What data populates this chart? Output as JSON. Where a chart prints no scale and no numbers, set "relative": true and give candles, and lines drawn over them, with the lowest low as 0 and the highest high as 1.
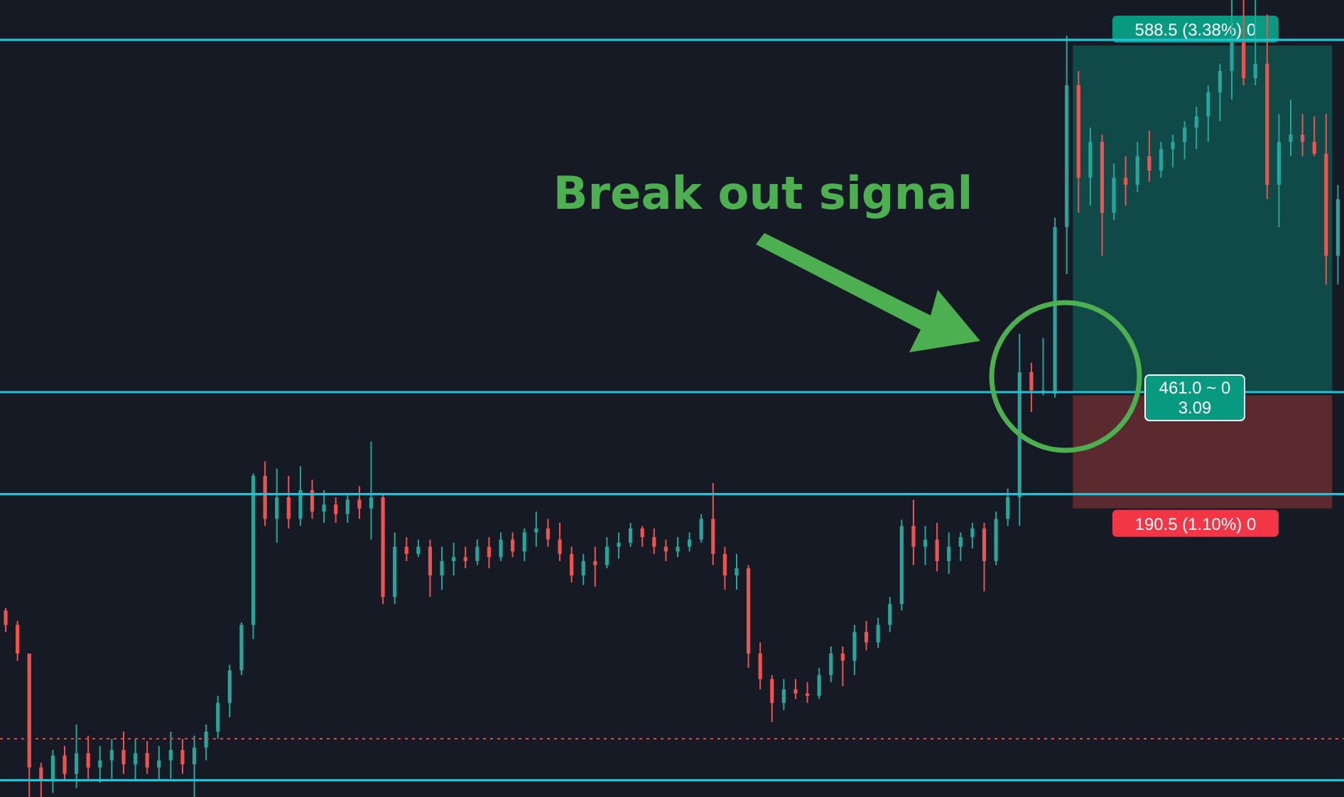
{
  "chart_data": {
    "type": "candlestick",
    "relative": true,
    "tick_labels": false,
    "grid": false,
    "legend": false,
    "categories": [
      null,
      null,
      null,
      null,
      null,
      null,
      null,
      null,
      null,
      null,
      null,
      null,
      null,
      null,
      null,
      null,
      null,
      null,
      null,
      null,
      null,
      null,
      null,
      null,
      null,
      null,
      null,
      null,
      null,
      null,
      null,
      null,
      null,
      null,
      null,
      null,
      null,
      null,
      null,
      null,
      null,
      null,
      null,
      null,
      null,
      null,
      null,
      null,
      null,
      null,
      null,
      null,
      null,
      null,
      null,
      null,
      null,
      null,
      null,
      null,
      null,
      null,
      null,
      null,
      null,
      null,
      null,
      null,
      null,
      null,
      null,
      null,
      null,
      null,
      null,
      null,
      null,
      null,
      null,
      null,
      null,
      null,
      null,
      null,
      null,
      null,
      null,
      null,
      null,
      null,
      null,
      null,
      null,
      null,
      null,
      null,
      null,
      null,
      null,
      null,
      null,
      null,
      null,
      null,
      null,
      null,
      null,
      null,
      null,
      null,
      null,
      null,
      null,
      null
    ],
    "colors": [
      "#ef5350",
      "#ef5350",
      "#ef5350",
      "#ef5350",
      "#26a69a",
      "#ef5350",
      "#26a69a",
      "#ef5350",
      "#26a69a",
      "#26a69a",
      "#ef5350",
      "#26a69a",
      "#ef5350",
      "#26a69a",
      "#26a69a",
      "#ef5350",
      "#26a69a",
      "#26a69a",
      "#26a69a",
      "#26a69a",
      "#26a69a",
      "#26a69a",
      "#ef5350",
      "#26a69a",
      "#ef5350",
      "#26a69a",
      "#ef5350",
      "#26a69a",
      "#ef5350",
      "#26a69a",
      "#ef5350",
      "#26a69a",
      "#ef5350",
      "#26a69a",
      "#ef5350",
      "#26a69a",
      "#ef5350",
      "#26a69a",
      "#26a69a",
      "#ef5350",
      "#26a69a",
      "#ef5350",
      "#26a69a",
      "#ef5350",
      "#26a69a",
      "#26a69a",
      "#ef5350",
      "#ef5350",
      "#ef5350",
      "#26a69a",
      "#ef5350",
      "#26a69a",
      "#26a69a",
      "#26a69a",
      "#ef5350",
      "#ef5350",
      "#ef5350",
      "#26a69a",
      "#26a69a",
      "#26a69a",
      "#ef5350",
      "#ef5350",
      "#26a69a",
      "#ef5350",
      "#ef5350",
      "#ef5350",
      "#26a69a",
      "#ef5350",
      "#ef5350",
      "#26a69a",
      "#26a69a",
      "#ef5350",
      "#26a69a",
      "#ef5350",
      "#26a69a",
      "#26a69a",
      "#26a69a",
      "#ef5350",
      "#26a69a",
      "#ef5350",
      "#26a69a",
      "#26a69a",
      "#26a69a",
      "#ef5350",
      "#26a69a",
      "#26a69a",
      "#26a69a",
      "#ef5350",
      "#26a69a",
      "#26a69a",
      "#26a69a",
      "#ef5350",
      "#26a69a",
      "#ef5350",
      "#26a69a",
      "#ef5350",
      "#26a69a",
      "#ef5350",
      "#26a69a",
      "#26a69a",
      "#26a69a",
      "#26a69a",
      "#26a69a",
      "#26a69a",
      "#26a69a",
      "#ef5350",
      "#26a69a",
      "#ef5350",
      "#26a69a",
      "#26a69a",
      "#ef5350",
      "#ef5350",
      "#ef5350",
      "#26a69a"
    ],
    "ohlc": [
      [
        0.234,
        0.237,
        0.207,
        0.216
      ],
      [
        0.216,
        0.221,
        0.171,
        0.18
      ],
      [
        0.18,
        0.18,
        0,
        0.037
      ],
      [
        0.037,
        0.043,
        0,
        0.02
      ],
      [
        0.02,
        0.059,
        0.005,
        0.052
      ],
      [
        0.052,
        0.064,
        0.02,
        0.029
      ],
      [
        0.029,
        0.091,
        0.011,
        0.055
      ],
      [
        0.055,
        0.077,
        0.023,
        0.037
      ],
      [
        0.037,
        0.064,
        0.018,
        0.046
      ],
      [
        0.046,
        0.073,
        0.023,
        0.059
      ],
      [
        0.059,
        0.082,
        0.029,
        0.041
      ],
      [
        0.041,
        0.073,
        0.02,
        0.055
      ],
      [
        0.055,
        0.07,
        0.029,
        0.037
      ],
      [
        0.037,
        0.064,
        0.02,
        0.046
      ],
      [
        0.046,
        0.082,
        0.023,
        0.059
      ],
      [
        0.059,
        0.073,
        0.029,
        0.041
      ],
      [
        0.041,
        0.077,
        0,
        0.062
      ],
      [
        0.062,
        0.091,
        0.046,
        0.082
      ],
      [
        0.082,
        0.127,
        0.073,
        0.118
      ],
      [
        0.118,
        0.166,
        0.1,
        0.159
      ],
      [
        0.159,
        0.219,
        0.153,
        0.216
      ],
      [
        0.216,
        0.406,
        0.198,
        0.403
      ],
      [
        0.403,
        0.421,
        0.34,
        0.349
      ],
      [
        0.349,
        0.412,
        0.319,
        0.376
      ],
      [
        0.376,
        0.403,
        0.337,
        0.349
      ],
      [
        0.349,
        0.415,
        0.34,
        0.385
      ],
      [
        0.385,
        0.398,
        0.349,
        0.358
      ],
      [
        0.358,
        0.385,
        0.344,
        0.367
      ],
      [
        0.367,
        0.376,
        0.344,
        0.355
      ],
      [
        0.355,
        0.38,
        0.344,
        0.373
      ],
      [
        0.373,
        0.39,
        0.349,
        0.362
      ],
      [
        0.362,
        0.446,
        0.323,
        0.376
      ],
      [
        0.376,
        0.38,
        0.242,
        0.251
      ],
      [
        0.251,
        0.332,
        0.242,
        0.314
      ],
      [
        0.314,
        0.326,
        0.296,
        0.305
      ],
      [
        0.305,
        0.323,
        0.301,
        0.314
      ],
      [
        0.314,
        0.323,
        0.251,
        0.278
      ],
      [
        0.278,
        0.314,
        0.26,
        0.296
      ],
      [
        0.296,
        0.319,
        0.278,
        0.301
      ],
      [
        0.301,
        0.314,
        0.287,
        0.296
      ],
      [
        0.296,
        0.323,
        0.291,
        0.314
      ],
      [
        0.314,
        0.326,
        0.287,
        0.301
      ],
      [
        0.301,
        0.332,
        0.296,
        0.323
      ],
      [
        0.323,
        0.332,
        0.301,
        0.308
      ],
      [
        0.308,
        0.337,
        0.296,
        0.332
      ],
      [
        0.332,
        0.358,
        0.314,
        0.337
      ],
      [
        0.337,
        0.349,
        0.314,
        0.323
      ],
      [
        0.323,
        0.344,
        0.296,
        0.305
      ],
      [
        0.305,
        0.314,
        0.269,
        0.278
      ],
      [
        0.278,
        0.305,
        0.266,
        0.296
      ],
      [
        0.296,
        0.314,
        0.264,
        0.291
      ],
      [
        0.291,
        0.326,
        0.287,
        0.314
      ],
      [
        0.314,
        0.332,
        0.299,
        0.319
      ],
      [
        0.319,
        0.344,
        0.314,
        0.337
      ],
      [
        0.337,
        0.34,
        0.314,
        0.326
      ],
      [
        0.326,
        0.337,
        0.305,
        0.314
      ],
      [
        0.314,
        0.323,
        0.296,
        0.308
      ],
      [
        0.308,
        0.326,
        0.301,
        0.314
      ],
      [
        0.314,
        0.332,
        0.308,
        0.323
      ],
      [
        0.323,
        0.355,
        0.319,
        0.349
      ],
      [
        0.349,
        0.394,
        0.291,
        0.305
      ],
      [
        0.305,
        0.314,
        0.26,
        0.278
      ],
      [
        0.278,
        0.305,
        0.26,
        0.287
      ],
      [
        0.287,
        0.291,
        0.162,
        0.18
      ],
      [
        0.18,
        0.194,
        0.135,
        0.148
      ],
      [
        0.148,
        0.153,
        0.094,
        0.118
      ],
      [
        0.118,
        0.148,
        0.109,
        0.135
      ],
      [
        0.135,
        0.148,
        0.123,
        0.13
      ],
      [
        0.13,
        0.144,
        0.118,
        0.127
      ],
      [
        0.127,
        0.162,
        0.123,
        0.153
      ],
      [
        0.153,
        0.189,
        0.144,
        0.18
      ],
      [
        0.18,
        0.189,
        0.139,
        0.171
      ],
      [
        0.171,
        0.216,
        0.153,
        0.207
      ],
      [
        0.207,
        0.221,
        0.184,
        0.194
      ],
      [
        0.194,
        0.225,
        0.187,
        0.216
      ],
      [
        0.216,
        0.251,
        0.207,
        0.242
      ],
      [
        0.242,
        0.348,
        0.234,
        0.34
      ],
      [
        0.34,
        0.373,
        0.291,
        0.314
      ],
      [
        0.314,
        0.34,
        0.291,
        0.323
      ],
      [
        0.323,
        0.344,
        0.283,
        0.296
      ],
      [
        0.296,
        0.332,
        0.28,
        0.314
      ],
      [
        0.314,
        0.332,
        0.296,
        0.326
      ],
      [
        0.326,
        0.344,
        0.312,
        0.337
      ],
      [
        0.337,
        0.344,
        0.258,
        0.296
      ],
      [
        0.296,
        0.358,
        0.291,
        0.349
      ],
      [
        0.349,
        0.387,
        0.34,
        0.376
      ],
      [
        0.376,
        0.581,
        0.34,
        0.533
      ],
      [
        0.533,
        0.545,
        0.483,
        0.51
      ],
      [
        0.51,
        0.576,
        0.504,
        0.51
      ],
      [
        0.506,
        0.727,
        0.501,
        0.715
      ],
      [
        0.715,
        0.955,
        0.656,
        0.893
      ],
      [
        0.893,
        0.911,
        0.733,
        0.777
      ],
      [
        0.777,
        0.84,
        0.742,
        0.822
      ],
      [
        0.822,
        0.831,
        0.679,
        0.733
      ],
      [
        0.733,
        0.795,
        0.724,
        0.777
      ],
      [
        0.777,
        0.804,
        0.742,
        0.768
      ],
      [
        0.768,
        0.822,
        0.759,
        0.804
      ],
      [
        0.804,
        0.836,
        0.772,
        0.786
      ],
      [
        0.786,
        0.822,
        0.777,
        0.813
      ],
      [
        0.813,
        0.831,
        0.79,
        0.822
      ],
      [
        0.822,
        0.848,
        0.8,
        0.84
      ],
      [
        0.84,
        0.866,
        0.813,
        0.854
      ],
      [
        0.854,
        0.893,
        0.822,
        0.884
      ],
      [
        0.884,
        0.92,
        0.848,
        0.911
      ],
      [
        0.911,
        1,
        0.875,
        0.947
      ],
      [
        0.947,
        1,
        0.893,
        0.902
      ],
      [
        0.902,
        1,
        0.893,
        0.92
      ],
      [
        0.92,
        0.982,
        0.75,
        0.768
      ],
      [
        0.768,
        0.857,
        0.715,
        0.822
      ],
      [
        0.822,
        0.875,
        0.804,
        0.831
      ],
      [
        0.831,
        0.857,
        0.804,
        0.822
      ],
      [
        0.822,
        0.854,
        0.804,
        0.807
      ],
      [
        0.807,
        0.857,
        0.643,
        0.679
      ],
      [
        0.679,
        0.768,
        0.643,
        0.75
      ]
    ],
    "ref_lines": [
      {
        "axis": "y",
        "value": 0.95,
        "color": "#22c3d6",
        "line_style": "solid"
      },
      {
        "axis": "y",
        "value": 0.508,
        "color": "#22c3d6",
        "line_style": "solid"
      },
      {
        "axis": "y",
        "value": 0.38,
        "color": "#22c3d6",
        "line_style": "solid"
      },
      {
        "axis": "y",
        "value": 0.021,
        "color": "#22c3d6",
        "line_style": "solid"
      },
      {
        "axis": "y",
        "value": 0.073,
        "color": "#e04848",
        "line_style": "dotted"
      }
    ],
    "bands": [
      {
        "axis": "y",
        "from": 0.508,
        "to": 0.943,
        "color": "#0f4a48",
        "label": "588.5 (3.38%) 0"
      },
      {
        "axis": "y",
        "from": 0.362,
        "to": 0.504,
        "color": "#5a2a2e",
        "label": "190.5 (1.10%) 0"
      }
    ],
    "annotations": [
      "Break out signal",
      "461.0 ~ 0",
      "3.09"
    ]
  }
}
